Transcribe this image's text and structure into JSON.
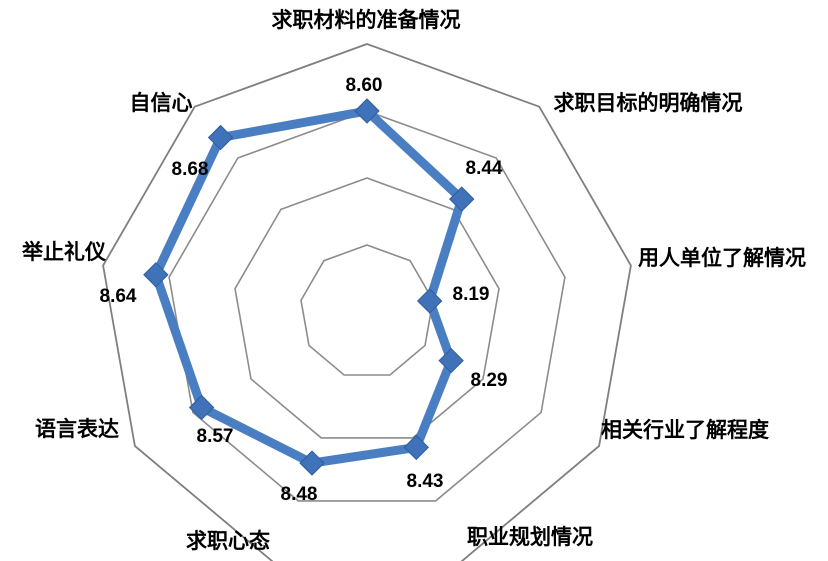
{
  "chart_data": {
    "type": "radar",
    "title": "",
    "categories": [
      "求职材料的准备情况",
      "求职目标的明确情况",
      "用人单位了解情况",
      "相关行业了解程度",
      "职业规划情况",
      "求职心态",
      "语言表达",
      "举止礼仪",
      "自信心"
    ],
    "series": [
      {
        "values": [
          8.6,
          8.44,
          8.19,
          8.29,
          8.43,
          8.48,
          8.57,
          8.64,
          8.68
        ],
        "labels": [
          "8.60",
          "8.44",
          "8.19",
          "8.29",
          "8.43",
          "8.48",
          "8.57",
          "8.64",
          "8.68"
        ]
      }
    ],
    "rlim": [
      8.0,
      8.8
    ],
    "rings": 4,
    "grid": true,
    "legend": "none",
    "colors": {
      "series": "#4a7ec2",
      "marker": "#3f72b8",
      "grid": "#8c8c8c"
    }
  }
}
